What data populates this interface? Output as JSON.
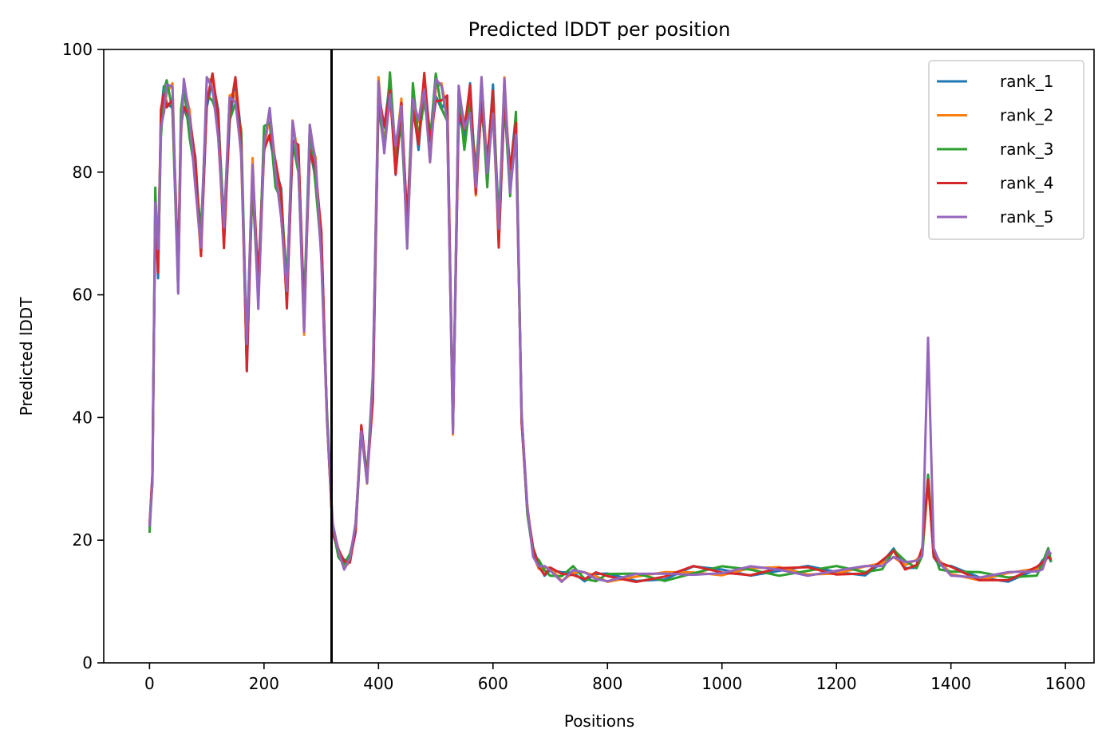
{
  "chart_data": {
    "type": "line",
    "title": "Predicted lDDT per position",
    "xlabel": "Positions",
    "ylabel": "Predicted lDDT",
    "xlim": [
      -80,
      1650
    ],
    "ylim": [
      0,
      100
    ],
    "xticks": [
      0,
      200,
      400,
      600,
      800,
      1000,
      1200,
      1400,
      1600
    ],
    "yticks": [
      0,
      20,
      40,
      60,
      80,
      100
    ],
    "grid": false,
    "legend_position": "top-right",
    "vline": 318,
    "series": [
      {
        "name": "rank_1",
        "color": "#1f77b4"
      },
      {
        "name": "rank_2",
        "color": "#ff7f0e"
      },
      {
        "name": "rank_3",
        "color": "#2ca02c"
      },
      {
        "name": "rank_4",
        "color": "#d62728"
      },
      {
        "name": "rank_5",
        "color": "#9467bd"
      }
    ],
    "x": [
      0,
      5,
      10,
      15,
      20,
      25,
      30,
      40,
      50,
      55,
      60,
      70,
      80,
      90,
      100,
      110,
      120,
      130,
      140,
      150,
      160,
      170,
      180,
      190,
      200,
      210,
      220,
      230,
      240,
      250,
      260,
      270,
      280,
      290,
      300,
      310,
      320,
      330,
      340,
      350,
      360,
      370,
      380,
      390,
      400,
      410,
      420,
      430,
      440,
      450,
      460,
      470,
      480,
      490,
      500,
      510,
      520,
      530,
      540,
      550,
      560,
      570,
      580,
      590,
      600,
      610,
      620,
      630,
      640,
      650,
      660,
      670,
      680,
      690,
      700,
      720,
      740,
      760,
      780,
      800,
      850,
      900,
      950,
      1000,
      1050,
      1100,
      1150,
      1200,
      1250,
      1280,
      1300,
      1320,
      1340,
      1350,
      1360,
      1370,
      1380,
      1400,
      1450,
      1500,
      1550,
      1560,
      1570,
      1575
    ],
    "base_values": [
      22,
      30,
      75,
      65,
      88,
      92,
      93,
      92,
      62,
      88,
      93,
      88,
      80,
      68,
      93,
      94,
      88,
      70,
      90,
      93,
      85,
      50,
      80,
      60,
      85,
      88,
      80,
      75,
      60,
      86,
      82,
      56,
      86,
      80,
      68,
      40,
      22,
      18,
      16,
      17,
      22,
      38,
      30,
      45,
      93,
      85,
      94,
      82,
      90,
      70,
      92,
      86,
      94,
      84,
      94,
      92,
      90,
      38,
      92,
      86,
      92,
      78,
      93,
      80,
      92,
      70,
      93,
      78,
      88,
      40,
      25,
      18,
      16,
      15,
      15,
      14,
      15,
      14,
      14,
      14,
      14,
      14,
      15,
      15,
      15,
      15,
      15,
      15,
      15,
      16,
      18,
      16,
      16,
      18,
      30,
      18,
      16,
      15,
      14,
      14,
      15,
      16,
      18,
      17
    ],
    "rank5_peak": {
      "x": 1363,
      "y": 53
    }
  }
}
